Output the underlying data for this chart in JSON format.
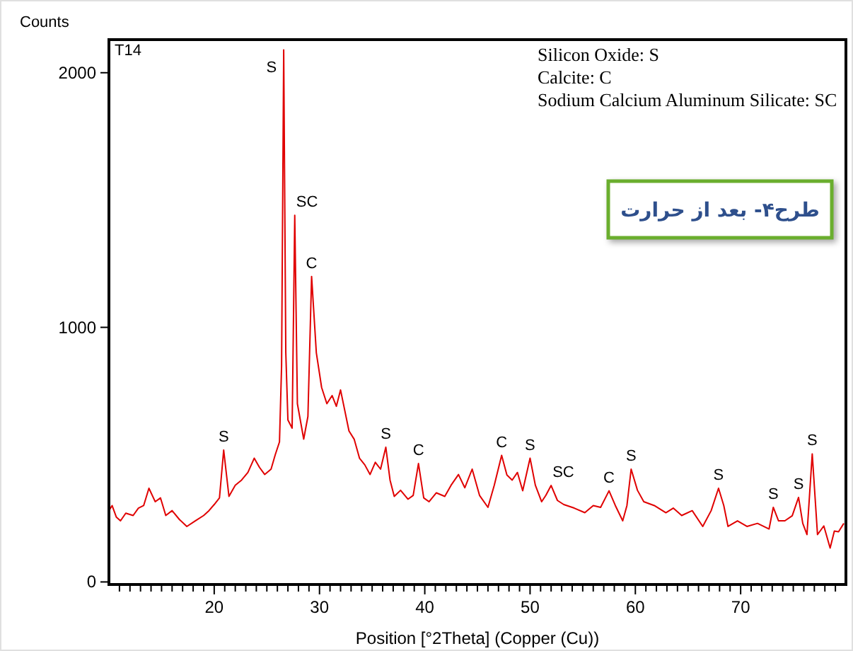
{
  "chart_data": {
    "type": "line",
    "xlabel": "Position [°2Theta] (Copper (Cu))",
    "ylabel": "Counts",
    "xlim": [
      10,
      80
    ],
    "ylim": [
      -10,
      2130
    ],
    "xticks": [
      {
        "value": 11,
        "label": null
      },
      {
        "value": 12,
        "label": null
      },
      {
        "value": 13,
        "label": null
      },
      {
        "value": 14,
        "label": null
      },
      {
        "value": 15,
        "label": null
      },
      {
        "value": 16,
        "label": null
      },
      {
        "value": 17,
        "label": null
      },
      {
        "value": 18,
        "label": null
      },
      {
        "value": 19,
        "label": null
      },
      20,
      {
        "value": 21,
        "label": null
      },
      {
        "value": 22,
        "label": null
      },
      {
        "value": 23,
        "label": null
      },
      {
        "value": 24,
        "label": null
      },
      {
        "value": 25,
        "label": null
      },
      {
        "value": 26,
        "label": null
      },
      {
        "value": 27,
        "label": null
      },
      {
        "value": 28,
        "label": null
      },
      {
        "value": 29,
        "label": null
      },
      30,
      {
        "value": 31,
        "label": null
      },
      {
        "value": 32,
        "label": null
      },
      {
        "value": 33,
        "label": null
      },
      {
        "value": 34,
        "label": null
      },
      {
        "value": 35,
        "label": null
      },
      {
        "value": 36,
        "label": null
      },
      {
        "value": 37,
        "label": null
      },
      {
        "value": 38,
        "label": null
      },
      {
        "value": 39,
        "label": null
      },
      40,
      {
        "value": 41,
        "label": null
      },
      {
        "value": 42,
        "label": null
      },
      {
        "value": 43,
        "label": null
      },
      {
        "value": 44,
        "label": null
      },
      {
        "value": 45,
        "label": null
      },
      {
        "value": 46,
        "label": null
      },
      {
        "value": 47,
        "label": null
      },
      {
        "value": 48,
        "label": null
      },
      {
        "value": 49,
        "label": null
      },
      50,
      {
        "value": 51,
        "label": null
      },
      {
        "value": 52,
        "label": null
      },
      {
        "value": 53,
        "label": null
      },
      {
        "value": 54,
        "label": null
      },
      {
        "value": 55,
        "label": null
      },
      {
        "value": 56,
        "label": null
      },
      {
        "value": 57,
        "label": null
      },
      {
        "value": 58,
        "label": null
      },
      {
        "value": 59,
        "label": null
      },
      60,
      {
        "value": 61,
        "label": null
      },
      {
        "value": 62,
        "label": null
      },
      {
        "value": 63,
        "label": null
      },
      {
        "value": 64,
        "label": null
      },
      {
        "value": 65,
        "label": null
      },
      {
        "value": 66,
        "label": null
      },
      {
        "value": 67,
        "label": null
      },
      {
        "value": 68,
        "label": null
      },
      {
        "value": 69,
        "label": null
      },
      70,
      {
        "value": 71,
        "label": null
      },
      {
        "value": 72,
        "label": null
      },
      {
        "value": 73,
        "label": null
      },
      {
        "value": 74,
        "label": null
      },
      {
        "value": 75,
        "label": null
      },
      {
        "value": 76,
        "label": null
      },
      {
        "value": 77,
        "label": null
      },
      {
        "value": 78,
        "label": null
      },
      {
        "value": 79,
        "label": null
      }
    ],
    "yticks": [
      0,
      1000,
      2000
    ],
    "grid": false,
    "marker": "none",
    "line_style": "solid",
    "series": [
      {
        "color": "#e00000",
        "x": [
          10.0,
          10.3,
          10.7,
          11.1,
          11.6,
          12.3,
          12.8,
          13.3,
          13.8,
          14.4,
          14.9,
          15.4,
          16.0,
          16.7,
          17.4,
          18.2,
          19.0,
          19.5,
          20.0,
          20.5,
          20.9,
          21.4,
          22.0,
          22.6,
          23.2,
          23.8,
          24.3,
          24.8,
          25.4,
          25.8,
          26.2,
          26.4,
          26.6,
          26.8,
          27.0,
          27.4,
          27.65,
          27.9,
          28.5,
          28.9,
          29.25,
          29.7,
          30.2,
          30.7,
          31.2,
          31.6,
          32.0,
          32.8,
          33.3,
          33.8,
          34.3,
          34.8,
          35.3,
          35.8,
          36.3,
          36.7,
          37.1,
          37.7,
          38.4,
          38.9,
          39.4,
          39.9,
          40.4,
          41.1,
          41.9,
          42.5,
          43.2,
          43.8,
          44.5,
          45.2,
          46.0,
          46.6,
          47.3,
          47.8,
          48.3,
          48.8,
          49.3,
          50.0,
          50.5,
          51.1,
          51.5,
          52.0,
          52.6,
          53.2,
          54.2,
          55.2,
          56.0,
          56.7,
          57.5,
          58.1,
          58.8,
          59.2,
          59.6,
          60.2,
          60.8,
          61.8,
          62.9,
          63.6,
          64.4,
          65.4,
          66.4,
          67.2,
          67.9,
          68.4,
          68.8,
          69.7,
          70.6,
          71.6,
          72.7,
          73.1,
          73.6,
          74.2,
          74.9,
          75.5,
          75.9,
          76.3,
          76.8,
          77.3,
          77.9,
          78.5,
          78.9,
          79.3,
          79.8
        ],
        "values": [
          280,
          300,
          255,
          240,
          270,
          261,
          290,
          300,
          368,
          315,
          330,
          261,
          280,
          245,
          218,
          240,
          261,
          280,
          304,
          330,
          518,
          336,
          380,
          400,
          430,
          486,
          450,
          422,
          443,
          500,
          550,
          850,
          2090,
          900,
          636,
          604,
          1440,
          700,
          561,
          650,
          1200,
          900,
          764,
          700,
          732,
          690,
          754,
          593,
          560,
          486,
          460,
          422,
          470,
          443,
          529,
          400,
          336,
          360,
          325,
          340,
          465,
          330,
          315,
          350,
          336,
          380,
          422,
          370,
          443,
          340,
          293,
          380,
          497,
          420,
          400,
          430,
          358,
          486,
          380,
          315,
          340,
          379,
          320,
          304,
          290,
          272,
          300,
          293,
          358,
          300,
          240,
          300,
          443,
          360,
          315,
          300,
          272,
          290,
          261,
          280,
          218,
          280,
          368,
          300,
          218,
          240,
          218,
          230,
          208,
          293,
          240,
          240,
          260,
          332,
          230,
          186,
          503,
          186,
          220,
          133,
          200,
          197,
          230
        ]
      }
    ],
    "annotations": [
      "T14",
      "Silicon Oxide: S",
      "Calcite: C",
      "Sodium Calcium Aluminum Silicate: SC",
      "طرح۴- بعد از حرارت",
      {
        "text": "S",
        "x": 20.9,
        "y": 518
      },
      {
        "text": "S",
        "x": 26.6,
        "y": 2090
      },
      {
        "text": "SC",
        "x": 27.65,
        "y": 1440
      },
      {
        "text": "C",
        "x": 29.25,
        "y": 1200
      },
      {
        "text": "S",
        "x": 36.3,
        "y": 529
      },
      {
        "text": "C",
        "x": 39.4,
        "y": 465
      },
      {
        "text": "C",
        "x": 47.3,
        "y": 497
      },
      {
        "text": "S",
        "x": 50.0,
        "y": 486
      },
      {
        "text": "SC",
        "x": 52.0,
        "y": 379
      },
      {
        "text": "C",
        "x": 57.5,
        "y": 358
      },
      {
        "text": "S",
        "x": 59.6,
        "y": 443
      },
      {
        "text": "S",
        "x": 67.9,
        "y": 368
      },
      {
        "text": "S",
        "x": 73.1,
        "y": 293
      },
      {
        "text": "S",
        "x": 75.5,
        "y": 332
      },
      {
        "text": "S",
        "x": 76.8,
        "y": 503
      }
    ]
  }
}
